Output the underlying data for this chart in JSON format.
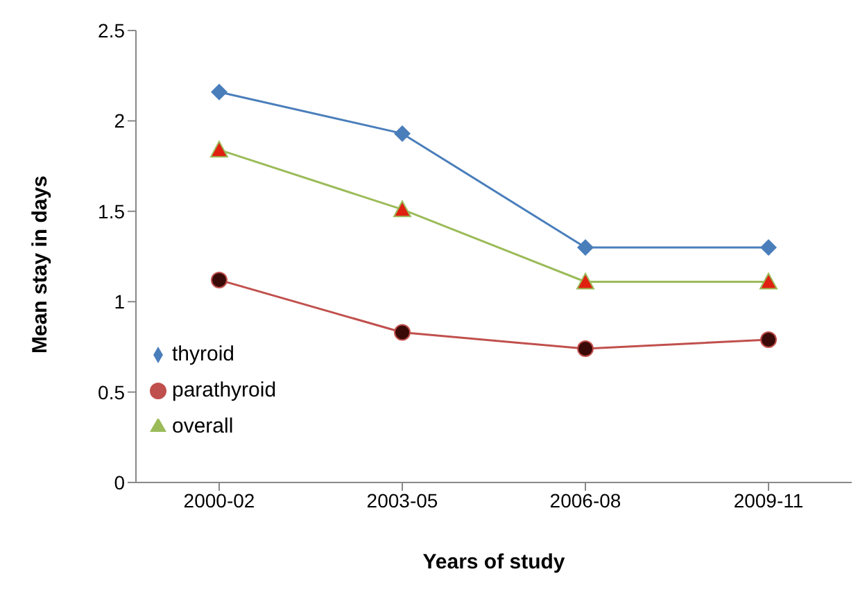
{
  "chart_data": {
    "type": "line",
    "xlabel": "Years of study",
    "ylabel": "Mean stay in days",
    "categories": [
      "2000-02",
      "2003-05",
      "2006-08",
      "2009-11"
    ],
    "series": [
      {
        "name": "thyroid",
        "color": "#4a7ebb",
        "marker": "diamond",
        "values": [
          2.16,
          1.93,
          1.3,
          1.3
        ]
      },
      {
        "name": "parathyroid",
        "color": "#c0504d",
        "marker": "circle",
        "values": [
          1.12,
          0.83,
          0.74,
          0.79
        ]
      },
      {
        "name": "overall",
        "color": "#9bbb59",
        "marker": "triangle",
        "values": [
          1.84,
          1.51,
          1.11,
          1.11
        ]
      }
    ],
    "ylim": [
      0,
      2.5
    ],
    "yticks": [
      0,
      0.5,
      1,
      1.5,
      2,
      2.5
    ],
    "grid": false,
    "legend": "left"
  }
}
